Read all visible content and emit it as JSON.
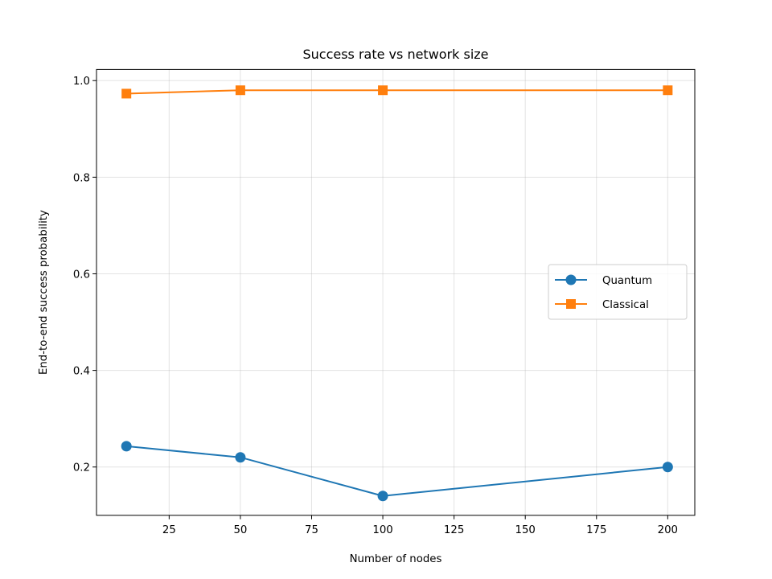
{
  "chart_data": {
    "type": "line",
    "title": "Success rate vs network size",
    "xlabel": "Number of nodes",
    "ylabel": "End-to-end success probability",
    "xlim": [
      -0.5,
      209.5
    ],
    "ylim": [
      0.1,
      1.023
    ],
    "xticks": [
      25,
      50,
      75,
      100,
      125,
      150,
      175,
      200
    ],
    "yticks": [
      0.2,
      0.4,
      0.6,
      0.8,
      1.0
    ],
    "grid": true,
    "legend_position": "center-right",
    "series": [
      {
        "name": "Quantum",
        "color": "#1f77b4",
        "marker": "circle",
        "x": [
          10,
          50,
          100,
          200
        ],
        "y": [
          0.243,
          0.22,
          0.14,
          0.2
        ]
      },
      {
        "name": "Classical",
        "color": "#ff7f0e",
        "marker": "square",
        "x": [
          10,
          50,
          100,
          200
        ],
        "y": [
          0.973,
          0.98,
          0.98,
          0.98
        ]
      }
    ]
  }
}
